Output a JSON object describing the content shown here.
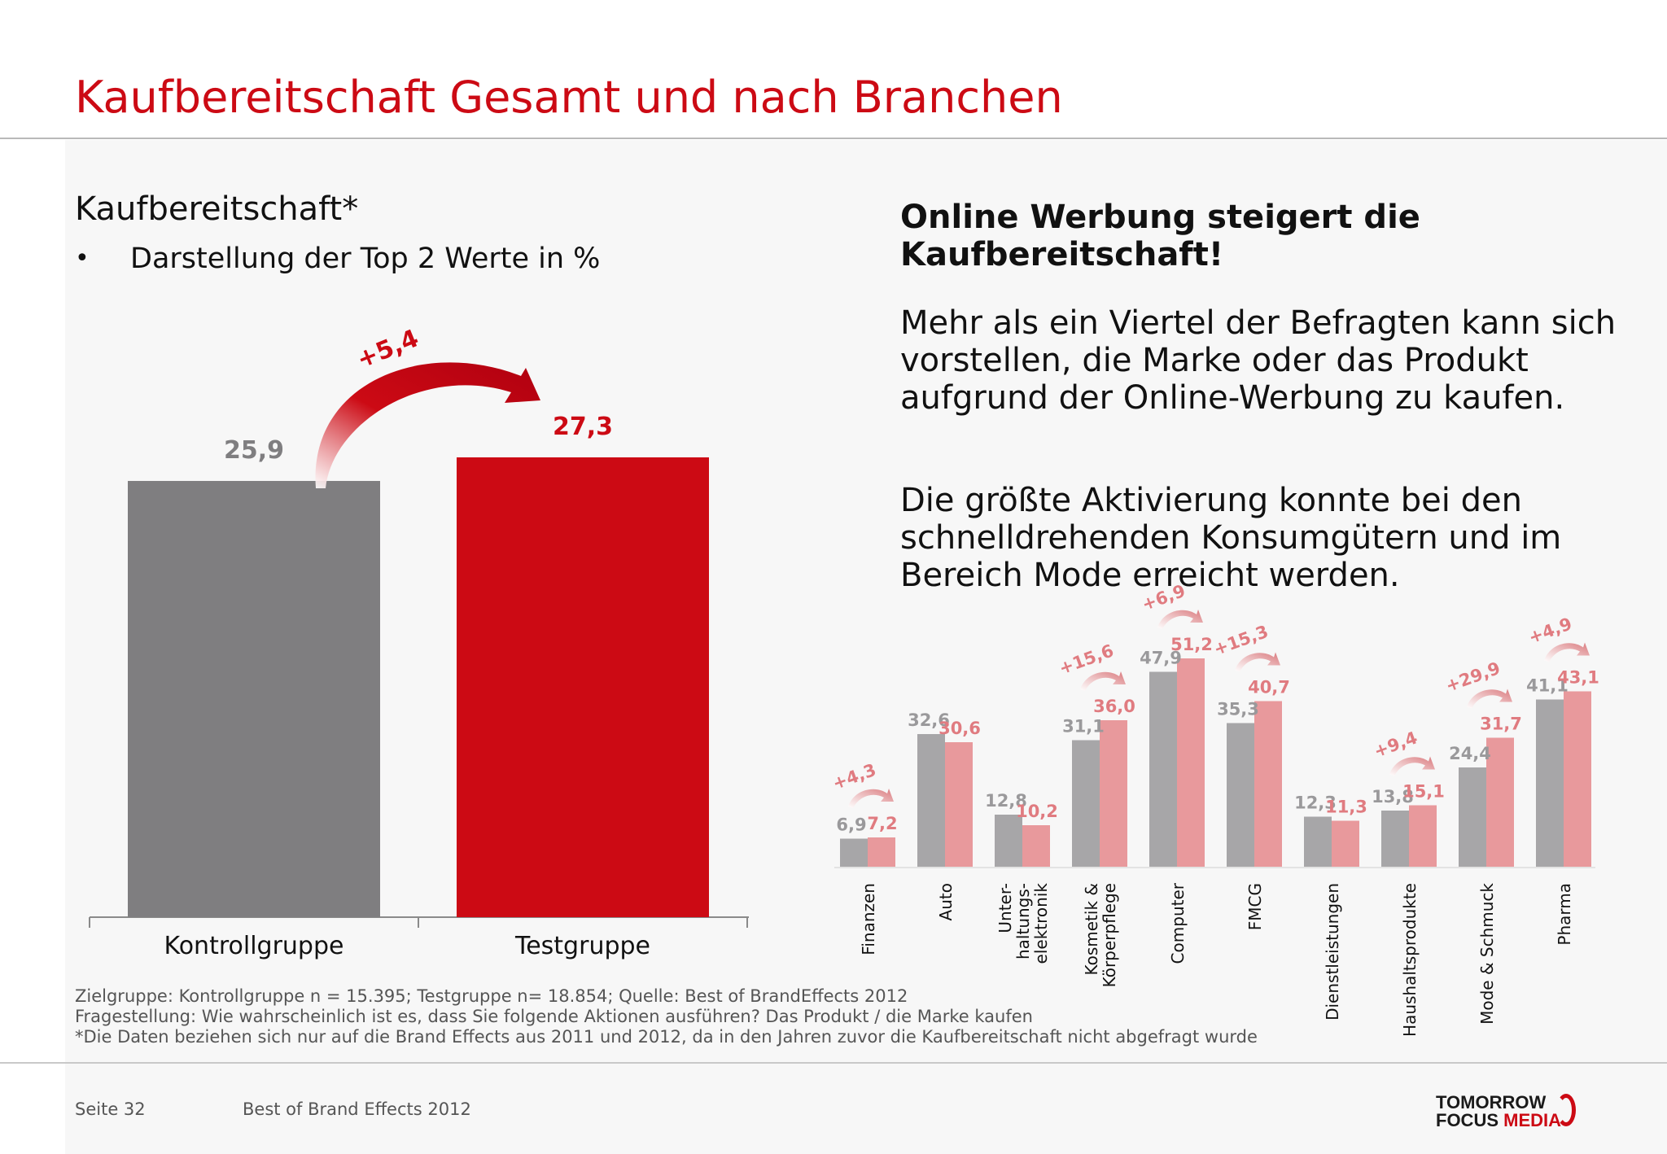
{
  "header": {
    "title": "Kaufbereitschaft Gesamt und nach Branchen"
  },
  "left": {
    "subtitle": "Kaufbereitschaft*",
    "bullet_symbol": "•",
    "bullet": "Darstellung der Top 2 Werte in %"
  },
  "right": {
    "headline": "Online Werbung steigert die Kaufbereitschaft!",
    "paragraph1": "Mehr als ein Viertel der Befragten kann sich vorstellen, die Marke oder das Produkt aufgrund der Online-Werbung zu kaufen.",
    "paragraph2": "Die größte Aktivierung konnte bei den schnelldrehenden Konsumgütern und im Bereich Mode erreicht werden."
  },
  "chart_data": [
    {
      "type": "bar",
      "categories": [
        "Kontrollgruppe",
        "Testgruppe"
      ],
      "values": [
        25.9,
        27.3
      ],
      "value_labels": [
        "25,9",
        "27,3"
      ],
      "delta_label": "+5,4",
      "colors": [
        "#7f7e80",
        "#cc0a14"
      ],
      "ylim": [
        0,
        27.3
      ]
    },
    {
      "type": "bar",
      "categories": [
        "Finanzen",
        "Auto",
        "Unter-haltungs-elektronik",
        "Kosmetik & Körperpflege",
        "Computer",
        "FMCG",
        "Dienstleistungen",
        "Haushaltsprodukte",
        "Mode & Schmuck",
        "Pharma"
      ],
      "category_lines": [
        [
          "Finanzen"
        ],
        [
          "Auto"
        ],
        [
          "Unter-",
          "haltungs-",
          "elektronik"
        ],
        [
          "Kosmetik &",
          "Körperpflege"
        ],
        [
          "Computer"
        ],
        [
          "FMCG"
        ],
        [
          "Dienstleistungen"
        ],
        [
          "Haushaltsprodukte"
        ],
        [
          "Mode & Schmuck"
        ],
        [
          "Pharma"
        ]
      ],
      "series": [
        {
          "values": [
            6.9,
            32.6,
            12.8,
            31.1,
            47.9,
            35.3,
            12.3,
            13.8,
            24.4,
            41.1
          ],
          "labels": [
            "6,9",
            "32,6",
            "12,8",
            "31,1",
            "47,9",
            "35,3",
            "12,3",
            "13,8",
            "24,4",
            "41,1"
          ],
          "color": "#a7a6a8"
        },
        {
          "values": [
            7.2,
            30.6,
            10.2,
            36.0,
            51.2,
            40.7,
            11.3,
            15.1,
            31.7,
            43.1
          ],
          "labels": [
            "7,2",
            "30,6",
            "10,2",
            "36,0",
            "51,2",
            "40,7",
            "11,3",
            "15,1",
            "31,7",
            "43,1"
          ],
          "color": "#e8999c"
        }
      ],
      "deltas": [
        "+4,3",
        null,
        null,
        "+15,6",
        "+6,9",
        "+15,3",
        null,
        "+9,4",
        "+29,9",
        "+4,9"
      ],
      "ylim": [
        0,
        51.2
      ]
    }
  ],
  "footnotes": [
    "Zielgruppe: Kontrollgruppe n = 15.395; Testgruppe n= 18.854; Quelle: Best of BrandEffects 2012",
    "Fragestellung: Wie wahrscheinlich ist es, dass Sie folgende Aktionen ausführen? Das Produkt / die Marke kaufen",
    "*Die Daten beziehen sich nur auf die Brand Effects  aus 2011 und 2012, da in den Jahren zuvor die Kaufbereitschaft nicht abgefragt wurde"
  ],
  "footer": {
    "page": "Seite 32",
    "doc": "Best of Brand Effects 2012",
    "logo_line1": "TOMORROW",
    "logo_line2a": "FOCUS ",
    "logo_line2b": "MEDIA"
  }
}
